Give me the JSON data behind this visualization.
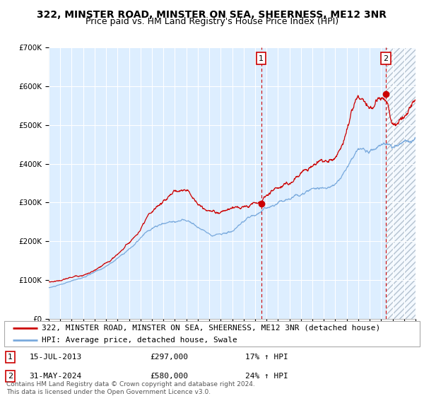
{
  "title": "322, MINSTER ROAD, MINSTER ON SEA, SHEERNESS, ME12 3NR",
  "subtitle": "Price paid vs. HM Land Registry's House Price Index (HPI)",
  "legend_line1": "322, MINSTER ROAD, MINSTER ON SEA, SHEERNESS, ME12 3NR (detached house)",
  "legend_line2": "HPI: Average price, detached house, Swale",
  "annotation1_label": "1",
  "annotation1_date": "15-JUL-2013",
  "annotation1_price": "£297,000",
  "annotation1_hpi": "17% ↑ HPI",
  "annotation2_label": "2",
  "annotation2_date": "31-MAY-2024",
  "annotation2_price": "£580,000",
  "annotation2_hpi": "24% ↑ HPI",
  "footer": "Contains HM Land Registry data © Crown copyright and database right 2024.\nThis data is licensed under the Open Government Licence v3.0.",
  "red_line_color": "#cc0000",
  "blue_line_color": "#7aaadd",
  "plot_bg_color": "#ddeeff",
  "hatch_bg_color": "#e8eef5",
  "hatch_color": "#99aabb",
  "grid_color": "#ffffff",
  "ylim": [
    0,
    700000
  ],
  "yticks": [
    0,
    100000,
    200000,
    300000,
    400000,
    500000,
    600000,
    700000
  ],
  "year_start": 1995,
  "year_end": 2027,
  "sale1_year": 2013.54,
  "sale1_value": 297000,
  "sale2_year": 2024.42,
  "sale2_value": 580000,
  "title_fontsize": 10,
  "subtitle_fontsize": 9,
  "tick_fontsize": 7,
  "legend_fontsize": 8,
  "annotation_fontsize": 8,
  "footer_fontsize": 6.5
}
